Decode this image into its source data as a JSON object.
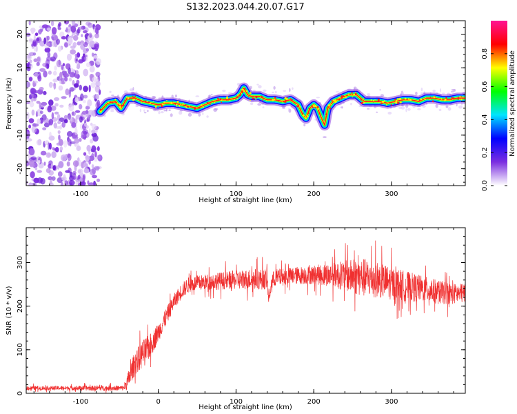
{
  "figure_title": "S132.2023.044.20.07.G17",
  "chart_data": [
    {
      "type": "heatmap",
      "title": "",
      "xlabel": "Height of straight line (km)",
      "ylabel": "Frequency (Hz)",
      "xlim": [
        -170,
        395
      ],
      "ylim": [
        -25,
        24
      ],
      "xticks": [
        -100,
        0,
        100,
        200,
        300
      ],
      "yticks": [
        -20,
        -10,
        0,
        10,
        20
      ],
      "colorbar": {
        "label": "Normalized spectral amplitude",
        "ticks": [
          "0.0",
          "0.2",
          "0.4",
          "0.6",
          "0.8"
        ],
        "range": [
          0,
          1
        ],
        "colormap": [
          "#ffffff",
          "#7b2fe0",
          "#0000ff",
          "#00e5ff",
          "#00ff00",
          "#ffff00",
          "#ff0000",
          "#ff1493"
        ]
      },
      "noise_region_x": [
        -170,
        -75
      ],
      "signal_track": {
        "x": [
          -75,
          -65,
          -55,
          -48,
          -40,
          -30,
          -20,
          -10,
          0,
          10,
          20,
          30,
          40,
          50,
          60,
          70,
          80,
          90,
          100,
          105,
          110,
          115,
          120,
          130,
          140,
          150,
          160,
          170,
          180,
          186,
          190,
          195,
          200,
          205,
          210,
          214,
          218,
          225,
          235,
          245,
          255,
          265,
          275,
          285,
          295,
          305,
          315,
          325,
          335,
          345,
          355,
          365,
          375,
          385,
          395
        ],
        "freq": [
          -3,
          -0.5,
          0,
          -2,
          1,
          1,
          0,
          -0.5,
          -1,
          -0.5,
          -0.5,
          -1,
          -1.5,
          -2,
          -1,
          0,
          0.5,
          0.5,
          1,
          2,
          4,
          2,
          1.5,
          1.5,
          0.5,
          0.5,
          0,
          0.5,
          -1,
          -4,
          -5,
          -2,
          -1,
          -2,
          -5,
          -7,
          -2,
          0,
          1,
          2,
          2,
          0,
          0,
          0,
          -0.5,
          0,
          0.5,
          0.5,
          0,
          1,
          1,
          0.5,
          0.5,
          1,
          1
        ]
      }
    },
    {
      "type": "line",
      "title": "",
      "xlabel": "Height of straight line (km)",
      "ylabel": "SNR (10 * v/v)",
      "xlim": [
        -170,
        395
      ],
      "ylim": [
        0,
        380
      ],
      "xticks": [
        -100,
        0,
        100,
        200,
        300
      ],
      "yticks": [
        0,
        100,
        200,
        300
      ],
      "color": "#f03030",
      "series": [
        {
          "x": [
            -170,
            -120,
            -80,
            -45,
            -40,
            -30,
            -20,
            -10,
            0,
            10,
            20,
            30,
            40,
            60,
            80,
            100,
            120,
            140,
            142,
            146,
            150,
            175,
            200,
            225,
            250,
            265,
            280,
            300,
            320,
            340,
            360,
            380,
            395
          ],
          "values": [
            12,
            12,
            12,
            12,
            25,
            70,
            90,
            110,
            140,
            175,
            210,
            235,
            250,
            255,
            258,
            260,
            262,
            262,
            215,
            255,
            265,
            270,
            272,
            272,
            268,
            265,
            262,
            252,
            245,
            240,
            232,
            228,
            230
          ],
          "noise": [
            5,
            5,
            6,
            6,
            18,
            28,
            32,
            28,
            22,
            20,
            18,
            18,
            18,
            18,
            20,
            22,
            24,
            24,
            10,
            20,
            20,
            20,
            22,
            28,
            40,
            45,
            42,
            38,
            35,
            30,
            28,
            24,
            22
          ]
        }
      ]
    }
  ]
}
